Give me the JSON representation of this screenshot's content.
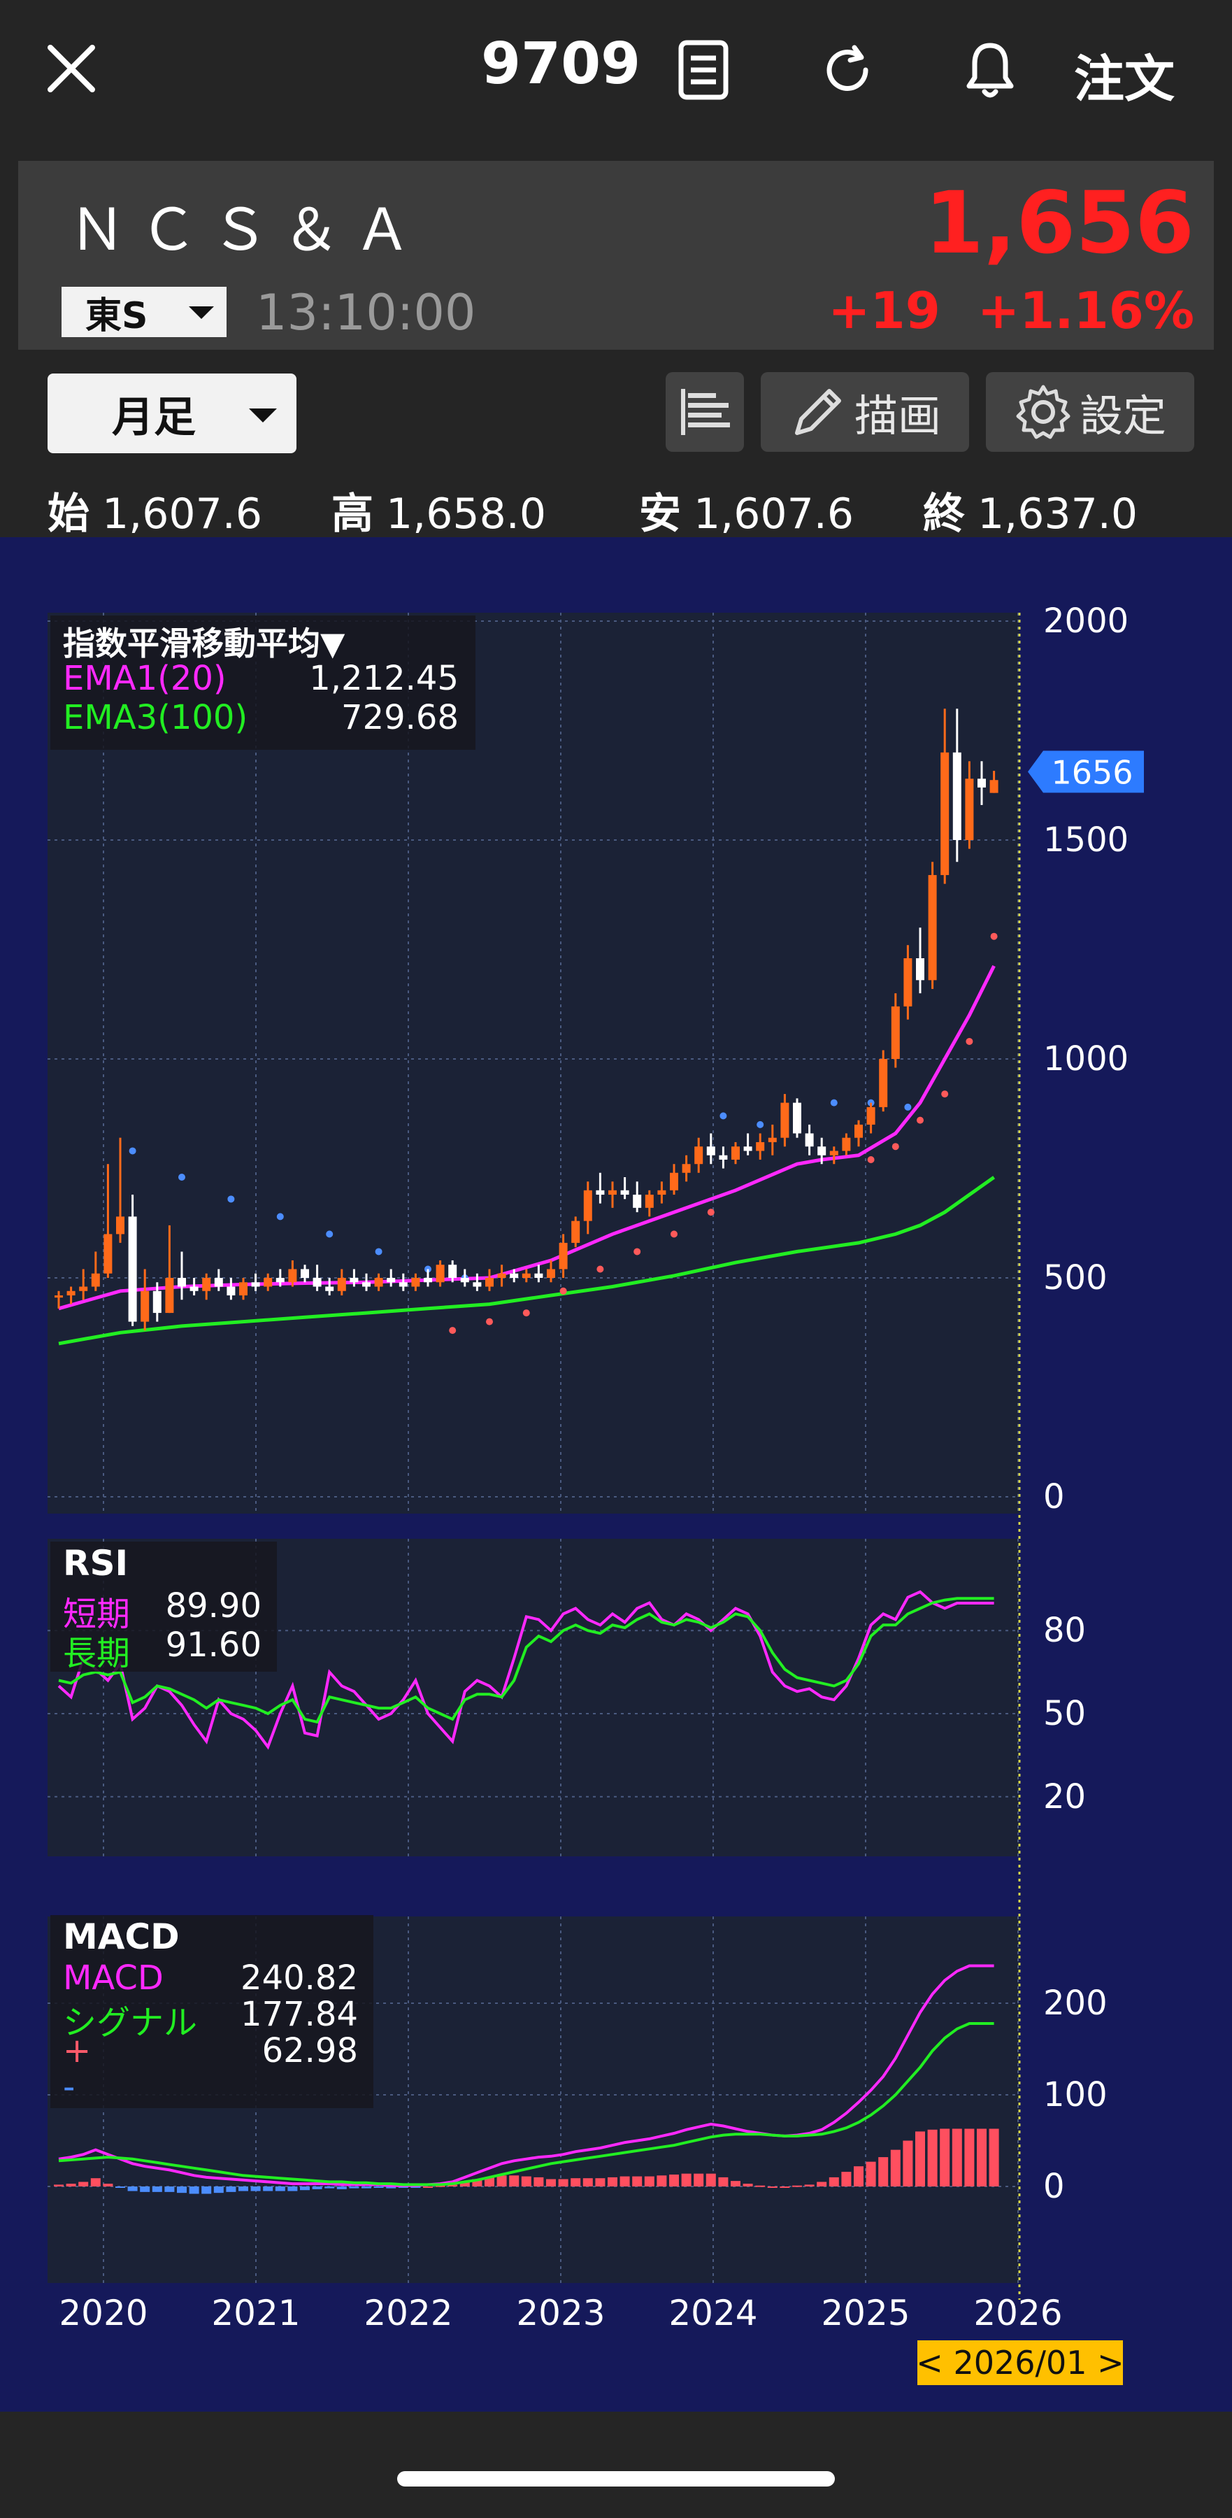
{
  "header": {
    "ticker": "9709",
    "order_label": "注文"
  },
  "quote": {
    "name": "ＮＣＳ＆Ａ",
    "market": "東S",
    "time": "13:10:00",
    "price": "1,656",
    "change": "+19",
    "change_pct": "+1.16%"
  },
  "controls": {
    "period": "月足",
    "draw_label": "描画",
    "settings_label": "設定"
  },
  "ohlc": {
    "open_label": "始",
    "open": "1,607.6",
    "high_label": "高",
    "high": "1,658.0",
    "low_label": "安",
    "low": "1,607.6",
    "close_label": "終",
    "close": "1,637.0"
  },
  "colors": {
    "up": "#ff6a1a",
    "down": "#ffffff",
    "ema1": "#ff29ff",
    "ema3": "#22ee22",
    "sar_up": "#ff5a5a",
    "sar_down": "#4c8dff",
    "rsi_short": "#ff29ff",
    "rsi_long": "#22ee22",
    "hist_pos": "#ff4f5f",
    "hist_neg": "#4c8dff",
    "price_red": "#ff2020",
    "price_tag": "#2d7bff",
    "date_tag": "#ffc000"
  },
  "chart_data": [
    {
      "type": "candlestick",
      "title": "指数平滑移動平均▼",
      "x_ticks": [
        "2020",
        "2021",
        "2022",
        "2023",
        "2024",
        "2025",
        "2026"
      ],
      "y_ticks": [
        0,
        500,
        1000,
        1500,
        2000
      ],
      "ylim": [
        0,
        2000
      ],
      "last_price_tag": "1656",
      "cursor_label": "< 2026/01 >",
      "ema_legend": [
        {
          "name": "EMA1(20)",
          "value": "1,212.45"
        },
        {
          "name": "EMA3(100)",
          "value": "729.68"
        }
      ],
      "candles_ohlc": [
        [
          455,
          470,
          430,
          460
        ],
        [
          460,
          480,
          440,
          470
        ],
        [
          470,
          520,
          450,
          480
        ],
        [
          480,
          560,
          470,
          510
        ],
        [
          510,
          760,
          500,
          600
        ],
        [
          600,
          820,
          580,
          640
        ],
        [
          640,
          690,
          390,
          400
        ],
        [
          400,
          520,
          380,
          470
        ],
        [
          470,
          490,
          400,
          420
        ],
        [
          420,
          620,
          420,
          500
        ],
        [
          500,
          560,
          450,
          480
        ],
        [
          480,
          500,
          460,
          470
        ],
        [
          470,
          510,
          450,
          500
        ],
        [
          500,
          520,
          470,
          480
        ],
        [
          480,
          500,
          450,
          460
        ],
        [
          460,
          500,
          450,
          490
        ],
        [
          490,
          510,
          470,
          480
        ],
        [
          480,
          510,
          470,
          500
        ],
        [
          500,
          520,
          480,
          490
        ],
        [
          490,
          540,
          480,
          520
        ],
        [
          520,
          530,
          490,
          500
        ],
        [
          500,
          530,
          470,
          480
        ],
        [
          480,
          500,
          460,
          470
        ],
        [
          470,
          520,
          460,
          500
        ],
        [
          500,
          520,
          480,
          490
        ],
        [
          490,
          510,
          470,
          480
        ],
        [
          480,
          510,
          470,
          500
        ],
        [
          500,
          520,
          480,
          490
        ],
        [
          490,
          510,
          470,
          480
        ],
        [
          480,
          510,
          470,
          500
        ],
        [
          500,
          520,
          480,
          490
        ],
        [
          490,
          540,
          480,
          530
        ],
        [
          530,
          540,
          490,
          500
        ],
        [
          500,
          520,
          480,
          490
        ],
        [
          490,
          510,
          470,
          480
        ],
        [
          480,
          520,
          470,
          500
        ],
        [
          500,
          530,
          480,
          510
        ],
        [
          510,
          520,
          490,
          500
        ],
        [
          500,
          520,
          490,
          510
        ],
        [
          510,
          530,
          490,
          500
        ],
        [
          500,
          540,
          490,
          520
        ],
        [
          520,
          600,
          500,
          580
        ],
        [
          580,
          640,
          570,
          630
        ],
        [
          630,
          720,
          600,
          700
        ],
        [
          700,
          740,
          670,
          690
        ],
        [
          690,
          720,
          660,
          700
        ],
        [
          700,
          730,
          680,
          690
        ],
        [
          690,
          720,
          650,
          660
        ],
        [
          660,
          700,
          640,
          690
        ],
        [
          690,
          720,
          670,
          700
        ],
        [
          700,
          760,
          690,
          740
        ],
        [
          740,
          780,
          720,
          760
        ],
        [
          760,
          820,
          740,
          800
        ],
        [
          800,
          830,
          760,
          780
        ],
        [
          780,
          800,
          750,
          770
        ],
        [
          770,
          810,
          760,
          800
        ],
        [
          800,
          830,
          780,
          790
        ],
        [
          790,
          830,
          770,
          810
        ],
        [
          810,
          850,
          780,
          820
        ],
        [
          820,
          920,
          800,
          900
        ],
        [
          900,
          910,
          820,
          830
        ],
        [
          830,
          850,
          780,
          800
        ],
        [
          800,
          820,
          760,
          780
        ],
        [
          780,
          800,
          760,
          790
        ],
        [
          790,
          830,
          780,
          820
        ],
        [
          820,
          860,
          800,
          850
        ],
        [
          850,
          900,
          830,
          890
        ],
        [
          890,
          1020,
          880,
          1000
        ],
        [
          1000,
          1150,
          980,
          1120
        ],
        [
          1120,
          1260,
          1090,
          1230
        ],
        [
          1230,
          1300,
          1150,
          1180
        ],
        [
          1180,
          1450,
          1160,
          1420
        ],
        [
          1420,
          1800,
          1400,
          1700
        ],
        [
          1700,
          1800,
          1450,
          1500
        ],
        [
          1500,
          1680,
          1480,
          1640
        ],
        [
          1640,
          1680,
          1580,
          1620
        ],
        [
          1607.6,
          1658,
          1607.6,
          1637
        ]
      ],
      "ema1": [
        [
          0,
          430
        ],
        [
          5,
          470
        ],
        [
          10,
          480
        ],
        [
          15,
          485
        ],
        [
          20,
          488
        ],
        [
          25,
          490
        ],
        [
          30,
          495
        ],
        [
          35,
          500
        ],
        [
          40,
          540
        ],
        [
          45,
          600
        ],
        [
          50,
          650
        ],
        [
          55,
          700
        ],
        [
          60,
          760
        ],
        [
          62,
          770
        ],
        [
          65,
          780
        ],
        [
          68,
          830
        ],
        [
          70,
          900
        ],
        [
          72,
          1000
        ],
        [
          74,
          1100
        ],
        [
          76,
          1212.45
        ]
      ],
      "ema3": [
        [
          0,
          350
        ],
        [
          5,
          375
        ],
        [
          10,
          390
        ],
        [
          15,
          400
        ],
        [
          20,
          410
        ],
        [
          25,
          420
        ],
        [
          30,
          430
        ],
        [
          35,
          440
        ],
        [
          40,
          460
        ],
        [
          45,
          480
        ],
        [
          50,
          505
        ],
        [
          55,
          535
        ],
        [
          60,
          560
        ],
        [
          65,
          580
        ],
        [
          68,
          600
        ],
        [
          70,
          620
        ],
        [
          72,
          650
        ],
        [
          74,
          690
        ],
        [
          76,
          729.68
        ]
      ],
      "sar_down": [
        [
          6,
          790
        ],
        [
          10,
          730
        ],
        [
          14,
          680
        ],
        [
          18,
          640
        ],
        [
          22,
          600
        ],
        [
          26,
          560
        ],
        [
          30,
          520
        ],
        [
          33,
          500
        ],
        [
          54,
          870
        ],
        [
          57,
          850
        ],
        [
          60,
          880
        ],
        [
          63,
          900
        ],
        [
          66,
          900
        ],
        [
          69,
          890
        ]
      ],
      "sar_up": [
        [
          32,
          380
        ],
        [
          35,
          400
        ],
        [
          38,
          420
        ],
        [
          41,
          470
        ],
        [
          44,
          520
        ],
        [
          47,
          560
        ],
        [
          50,
          600
        ],
        [
          53,
          650
        ],
        [
          66,
          770
        ],
        [
          68,
          800
        ],
        [
          70,
          860
        ],
        [
          72,
          920
        ],
        [
          74,
          1040
        ],
        [
          76,
          1280
        ]
      ]
    },
    {
      "type": "line",
      "title": "RSI",
      "y_ticks": [
        20,
        50,
        80
      ],
      "ylim": [
        0,
        100
      ],
      "series": [
        {
          "name": "短期",
          "value": "89.90",
          "values": [
            60,
            56,
            70,
            66,
            62,
            68,
            48,
            52,
            60,
            58,
            53,
            46,
            40,
            55,
            50,
            48,
            44,
            38,
            50,
            60,
            43,
            42,
            65,
            60,
            58,
            53,
            48,
            50,
            55,
            62,
            50,
            45,
            40,
            58,
            62,
            60,
            56,
            70,
            85,
            84,
            80,
            86,
            88,
            84,
            82,
            86,
            83,
            88,
            90,
            84,
            82,
            86,
            84,
            80,
            84,
            88,
            86,
            78,
            65,
            60,
            58,
            59,
            56,
            55,
            60,
            70,
            82,
            86,
            84,
            92,
            94,
            90,
            88,
            89.9,
            89.9,
            89.9,
            89.9
          ]
        },
        {
          "name": "長期",
          "value": "91.60",
          "values": [
            62,
            61,
            64,
            65,
            64,
            65,
            54,
            56,
            60,
            59,
            57,
            55,
            52,
            55,
            54,
            53,
            52,
            50,
            53,
            55,
            48,
            47,
            56,
            55,
            54,
            53,
            52,
            52,
            54,
            56,
            52,
            50,
            48,
            55,
            57,
            57,
            56,
            62,
            74,
            78,
            76,
            80,
            82,
            80,
            79,
            82,
            81,
            84,
            86,
            83,
            82,
            84,
            83,
            81,
            83,
            86,
            85,
            80,
            72,
            66,
            63,
            62,
            61,
            60,
            62,
            68,
            78,
            82,
            82,
            86,
            88,
            90,
            91,
            91.6,
            91.6,
            91.6,
            91.6
          ]
        }
      ]
    },
    {
      "type": "bar+line",
      "title": "MACD",
      "y_ticks": [
        0,
        100,
        200
      ],
      "ylim": [
        -40,
        250
      ],
      "series": [
        {
          "name": "MACD",
          "value": "240.82",
          "values": [
            30,
            32,
            35,
            40,
            35,
            30,
            25,
            22,
            20,
            18,
            15,
            12,
            10,
            9,
            8,
            7,
            6,
            5,
            4,
            3,
            3,
            3,
            3,
            2,
            2,
            2,
            2,
            1,
            1,
            1,
            2,
            3,
            5,
            10,
            15,
            20,
            25,
            28,
            30,
            32,
            33,
            35,
            38,
            40,
            42,
            45,
            48,
            50,
            52,
            55,
            58,
            62,
            65,
            68,
            66,
            63,
            60,
            58,
            56,
            55,
            56,
            58,
            62,
            70,
            80,
            92,
            105,
            120,
            140,
            165,
            190,
            210,
            225,
            235,
            240.82,
            240.82,
            240.82
          ]
        },
        {
          "name": "シグナル",
          "value": "177.84",
          "values": [
            28,
            29,
            30,
            31,
            32,
            31,
            30,
            28,
            26,
            24,
            22,
            20,
            18,
            16,
            14,
            12,
            11,
            10,
            9,
            8,
            7,
            6,
            5,
            5,
            4,
            4,
            3,
            3,
            2,
            2,
            2,
            2,
            3,
            5,
            7,
            10,
            13,
            16,
            19,
            22,
            25,
            27,
            29,
            31,
            33,
            35,
            37,
            39,
            41,
            43,
            45,
            48,
            51,
            54,
            56,
            57,
            57,
            57,
            56,
            55,
            55,
            56,
            57,
            60,
            64,
            70,
            78,
            88,
            100,
            115,
            130,
            148,
            162,
            172,
            177.84,
            177.84,
            177.84
          ]
        },
        {
          "name": "+",
          "value": "62.98",
          "values": [
            2,
            3,
            5,
            9,
            3,
            -1,
            -5,
            -6,
            -6,
            -6,
            -7,
            -8,
            -8,
            -7,
            -6,
            -5,
            -5,
            -5,
            -5,
            -5,
            -4,
            -3,
            -2,
            -3,
            -2,
            -2,
            -1,
            -2,
            -1,
            -1,
            0,
            1,
            2,
            5,
            8,
            10,
            12,
            12,
            11,
            10,
            8,
            8,
            9,
            9,
            9,
            10,
            11,
            11,
            11,
            12,
            13,
            14,
            14,
            14,
            10,
            6,
            3,
            1,
            0,
            0,
            1,
            2,
            5,
            10,
            16,
            22,
            27,
            32,
            40,
            50,
            60,
            62,
            63,
            63,
            62.98,
            62.98,
            62.98
          ]
        },
        {
          "name": "-",
          "value": ""
        }
      ]
    }
  ]
}
